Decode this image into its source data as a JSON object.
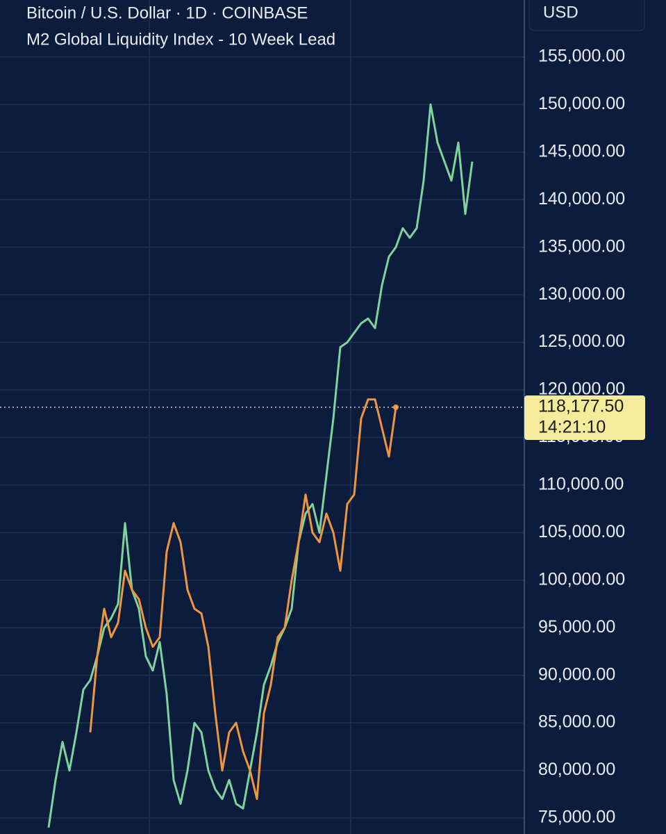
{
  "chart_data": {
    "type": "line",
    "title": "Bitcoin / U.S. Dollar · 1D · COINBASE",
    "subtitle": "M2 Global Liquidity Index - 10 Week Lead",
    "unit": "USD",
    "ylim": [
      73320,
      160990
    ],
    "yticks": [
      {
        "value": 75000,
        "label": "75,000.00"
      },
      {
        "value": 80000,
        "label": "80,000.00"
      },
      {
        "value": 85000,
        "label": "85,000.00"
      },
      {
        "value": 90000,
        "label": "90,000.00"
      },
      {
        "value": 95000,
        "label": "95,000.00"
      },
      {
        "value": 100000,
        "label": "100,000.00"
      },
      {
        "value": 105000,
        "label": "105,000.00"
      },
      {
        "value": 110000,
        "label": "110,000.00"
      },
      {
        "value": 115000,
        "label": "115,000.00"
      },
      {
        "value": 120000,
        "label": "120,000.00"
      },
      {
        "value": 125000,
        "label": "125,000.00"
      },
      {
        "value": 130000,
        "label": "130,000.00"
      },
      {
        "value": 135000,
        "label": "135,000.00"
      },
      {
        "value": 140000,
        "label": "140,000.00"
      },
      {
        "value": 145000,
        "label": "145,000.00"
      },
      {
        "value": 150000,
        "label": "150,000.00"
      },
      {
        "value": 155000,
        "label": "155,000.00"
      }
    ],
    "grid": true,
    "crosshair": {
      "value": 118177.5,
      "label": "118,177.50",
      "time": "14:21:10"
    },
    "series": [
      {
        "color": "#7fd39c",
        "values": [
          74000,
          79000,
          83000,
          80000,
          84000,
          88500,
          89500,
          92000,
          95000,
          96000,
          97500,
          106000,
          99000,
          97000,
          92000,
          90500,
          93500,
          88000,
          79000,
          76500,
          80000,
          85000,
          84000,
          80000,
          78000,
          77000,
          79000,
          76500,
          76000,
          80000,
          84000,
          89000,
          91000,
          93500,
          95000,
          97000,
          104000,
          107000,
          108000,
          105000,
          111000,
          117000,
          124500,
          125000,
          126000,
          127000,
          127500,
          126500,
          131000,
          134000,
          135000,
          137000,
          136000,
          137000,
          142000,
          150000,
          146000,
          144000,
          142000,
          146000,
          138500,
          144000
        ]
      },
      {
        "color": "#f0963c",
        "values": [
          null,
          null,
          null,
          null,
          null,
          null,
          84000,
          92000,
          97000,
          94000,
          95500,
          101000,
          99000,
          98000,
          95000,
          93000,
          94000,
          103000,
          106000,
          104000,
          99000,
          97000,
          96500,
          93000,
          86000,
          80000,
          84000,
          85000,
          82000,
          80000,
          77000,
          86000,
          89000,
          94000,
          95000,
          100000,
          104000,
          109000,
          105000,
          104000,
          107000,
          105000,
          101000,
          108000,
          109000,
          117000,
          119000,
          119000,
          116000,
          113000,
          118177.5,
          null,
          null,
          null,
          null,
          null,
          null,
          null,
          null,
          null,
          null,
          null
        ]
      }
    ]
  }
}
